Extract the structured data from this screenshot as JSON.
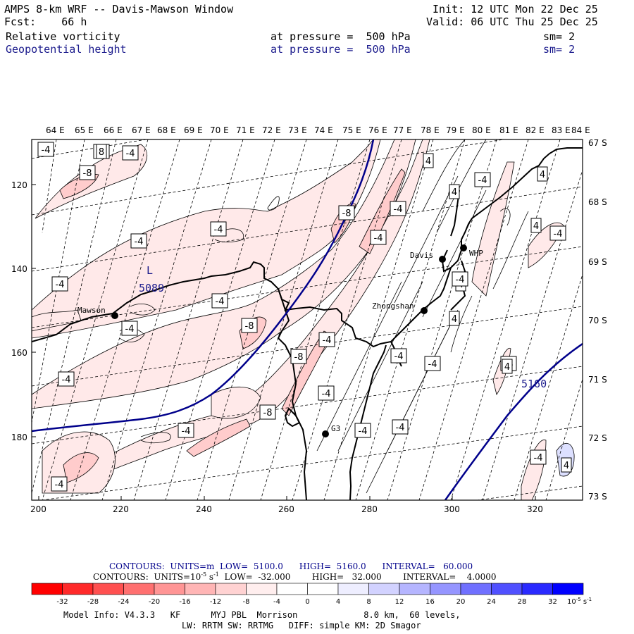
{
  "header": {
    "title": "AMPS 8-km WRF -- Davis-Mawson Window",
    "forecast": "Fcst:    66 h",
    "init": "Init: 12 UTC Mon 22 Dec 25",
    "valid": "Valid: 06 UTC Thu 25 Dec 25",
    "field1_name": "Relative vorticity",
    "field1_pressure": "at pressure =  500 hPa",
    "field1_smooth": "sm= 2",
    "field2_name": "Geopotential height",
    "field2_pressure": "at pressure =  500 hPa",
    "field2_smooth": "sm= 2"
  },
  "map": {
    "lon_labels": [
      "64 E",
      "65 E",
      "66 E",
      "67 E",
      "68 E",
      "69 E",
      "70 E",
      "71 E",
      "72 E",
      "73 E",
      "74 E",
      "75 E",
      "76 E",
      "77 E",
      "78 E",
      "79 E",
      "80 E",
      "81 E",
      "82 E",
      "83 E",
      "84 E"
    ],
    "lat_labels": [
      "67 S",
      "68 S",
      "69 S",
      "70 S",
      "71 S",
      "72 S",
      "73 S"
    ],
    "x_ticks": [
      "200",
      "220",
      "240",
      "260",
      "280",
      "300",
      "320"
    ],
    "y_ticks": [
      "120",
      "140",
      "160",
      "180"
    ],
    "stations": [
      {
        "name": "Mawson"
      },
      {
        "name": "Davis"
      },
      {
        "name": "WHP"
      },
      {
        "name": "Zhongshan"
      },
      {
        "name": "G3"
      }
    ],
    "low_label": "L",
    "low_value": "5089",
    "height_label": "5160",
    "vort_labels": [
      "-4",
      "-4",
      "-4",
      "-8",
      "-4",
      "-4",
      "-4",
      "-4",
      "-4",
      "-8",
      "-4",
      "-8",
      "-4",
      "-8",
      "-4",
      "-4",
      "-8",
      "-4",
      "-4",
      "-4",
      "-4",
      "-4",
      "-4",
      "-4",
      "4",
      "4",
      "4",
      "4",
      "4",
      "4",
      "-4",
      "-4",
      "-4",
      "-4",
      "-4",
      "4",
      "4",
      "-4",
      "8"
    ]
  },
  "contours": {
    "line1": "CONTOURS:  UNITS=m  LOW=  5100.0      HIGH=  5160.0      INTERVAL=   60.000",
    "line2_a": "CONTOURS:  UNITS=10",
    "line2_exp": "-5",
    "line2_b": " s",
    "line2_exp2": "-1",
    "line2_c": "  LOW=  -32.000        HIGH=   32.000        INTERVAL=    4.0000"
  },
  "colorbar": {
    "labels": [
      "-32",
      "-28",
      "-24",
      "-20",
      "-16",
      "-12",
      "-8",
      "-4",
      "0",
      "4",
      "8",
      "12",
      "16",
      "20",
      "24",
      "28",
      "32"
    ],
    "unit": "10",
    "unit_exp": "-5",
    "unit_s": " s",
    "unit_exp2": "-1",
    "colors": [
      "#ff0000",
      "#ff2a2a",
      "#ff5050",
      "#ff7070",
      "#ff9595",
      "#ffb5b5",
      "#ffd2d2",
      "#ffeeee",
      "#ffffff",
      "#ffffff",
      "#eeeeff",
      "#d2d2ff",
      "#b5b5ff",
      "#9595ff",
      "#7070ff",
      "#5050ff",
      "#2a2aff",
      "#0000ff"
    ]
  },
  "info": {
    "line1": "Model Info: V4.3.3   KF      MYJ PBL  Morrison             8.0 km,  60 levels,",
    "line2": "LW: RRTM SW: RRTMG   DIFF: simple KM: 2D Smagor"
  }
}
